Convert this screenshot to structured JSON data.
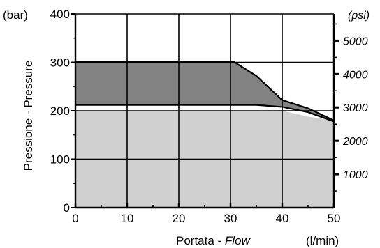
{
  "chart_data": {
    "type": "area",
    "xlabel_main": "Portata - ",
    "xlabel_em": "Flow",
    "x_unit": "(l/min)",
    "ylabel": "Pressione - Pressure",
    "y_unit_left": "(bar)",
    "y_unit_right": "(psi)",
    "xlim": [
      0,
      50
    ],
    "ylim": [
      0,
      400
    ],
    "x_ticks": [
      0,
      10,
      20,
      30,
      40,
      50
    ],
    "y_ticks": [
      0,
      100,
      200,
      300,
      400
    ],
    "psi_ticks": [
      1000,
      2000,
      3000,
      4000,
      5000
    ],
    "grid": true,
    "series": [
      {
        "fill": "#d0d0d0",
        "points": [
          [
            0,
            212
          ],
          [
            35,
            212
          ],
          [
            40,
            208
          ],
          [
            45,
            197
          ],
          [
            50,
            178
          ]
        ]
      },
      {
        "fill": "#828282",
        "points": [
          [
            0,
            302
          ],
          [
            30.5,
            302
          ],
          [
            35,
            272
          ],
          [
            40,
            222
          ],
          [
            45,
            205
          ],
          [
            50,
            180
          ]
        ]
      }
    ],
    "light_region_top": [
      [
        0,
        200
      ],
      [
        40,
        200
      ],
      [
        45,
        188
      ],
      [
        50,
        180
      ]
    ]
  }
}
